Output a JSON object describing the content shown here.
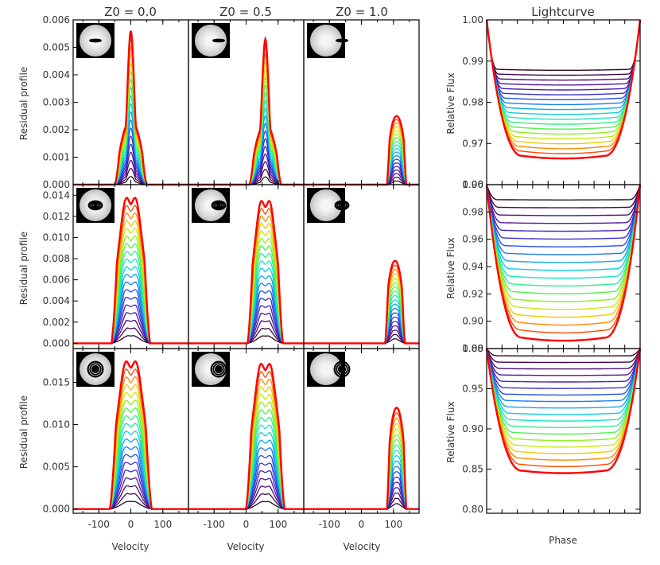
{
  "figure": {
    "column_titles": [
      "Z0 = 0.0",
      "Z0 = 0.5",
      "Z0 = 1.0"
    ],
    "lightcurve_title": "Lightcurve",
    "profile_ylabel": "Residual profile",
    "profile_xlabel": "Velocity",
    "lightcurve_ylabel": "Relative Flux",
    "lightcurve_xlabel": "Phase",
    "rainbow_colors": [
      "#2a0a1e",
      "#3b0a4a",
      "#4b1070",
      "#50199a",
      "#4824b8",
      "#3a33d4",
      "#2a4fe8",
      "#1f7cf0",
      "#10a8ec",
      "#0fcfe0",
      "#15e8c0",
      "#2ef08a",
      "#55f050",
      "#8ef020",
      "#c8e810",
      "#f2c808",
      "#ff8a00",
      "#ff4a00",
      "#ff0000"
    ]
  },
  "chart_data": [
    {
      "type": "line",
      "panel": "row1-Z0.0",
      "x_range": [
        -180,
        180
      ],
      "ylim": [
        0,
        0.006
      ],
      "xticks": [
        -100,
        0,
        100
      ],
      "yticks": [
        0,
        0.001,
        0.002,
        0.003,
        0.004,
        0.005,
        0.006
      ],
      "ytick_labels": [
        "0.000",
        "0.001",
        "0.002",
        "0.003",
        "0.004",
        "0.005",
        "0.006"
      ],
      "center": 0,
      "halfwidth": 50,
      "peak": 0.0056,
      "shape": "spiky",
      "inset": {
        "ring_x": 0.0,
        "ring_scale": 0.26,
        "ring_flatten": 0.18
      }
    },
    {
      "type": "line",
      "panel": "row1-Z0.5",
      "x_range": [
        -180,
        180
      ],
      "ylim": [
        0,
        0.006
      ],
      "xticks": [
        -100,
        0,
        100
      ],
      "center": 60,
      "halfwidth": 50,
      "peak": 0.0053,
      "shape": "spiky",
      "inset": {
        "ring_x": 0.5,
        "ring_scale": 0.26,
        "ring_flatten": 0.18
      }
    },
    {
      "type": "line",
      "panel": "row1-Z1.0",
      "x_range": [
        -180,
        180
      ],
      "ylim": [
        0,
        0.006
      ],
      "xticks": [
        -100,
        0,
        100
      ],
      "center": 110,
      "halfwidth": 30,
      "peak": 0.0025,
      "shape": "edge",
      "inset": {
        "ring_x": 1.0,
        "ring_scale": 0.26,
        "ring_flatten": 0.18
      }
    },
    {
      "type": "line",
      "panel": "row1-lightcurve",
      "x_range": [
        0,
        1
      ],
      "ylim": [
        0.96,
        1.0
      ],
      "yticks": [
        0.96,
        0.97,
        0.98,
        0.99,
        1.0
      ],
      "ytick_labels": [
        "0.96",
        "0.97",
        "0.98",
        "0.99",
        "1.00"
      ],
      "min_depths": [
        0.988,
        0.967
      ]
    },
    {
      "type": "line",
      "panel": "row2-Z0.0",
      "x_range": [
        -180,
        180
      ],
      "ylim": [
        -0.0005,
        0.015
      ],
      "xticks": [
        -100,
        0,
        100
      ],
      "yticks": [
        0,
        0.002,
        0.004,
        0.006,
        0.008,
        0.01,
        0.012,
        0.014
      ],
      "ytick_labels": [
        "0.000",
        "0.002",
        "0.004",
        "0.006",
        "0.008",
        "0.010",
        "0.012",
        "0.014"
      ],
      "center": 0,
      "halfwidth": 60,
      "peak": 0.014,
      "shape": "round",
      "inset": {
        "ring_x": 0.0,
        "ring_scale": 0.32,
        "ring_flatten": 0.62
      }
    },
    {
      "type": "line",
      "panel": "row2-Z0.5",
      "x_range": [
        -180,
        180
      ],
      "ylim": [
        -0.0005,
        0.015
      ],
      "xticks": [
        -100,
        0,
        100
      ],
      "center": 60,
      "halfwidth": 55,
      "peak": 0.0137,
      "shape": "round",
      "inset": {
        "ring_x": 0.5,
        "ring_scale": 0.32,
        "ring_flatten": 0.62
      }
    },
    {
      "type": "line",
      "panel": "row2-Z1.0",
      "x_range": [
        -180,
        180
      ],
      "ylim": [
        -0.0005,
        0.015
      ],
      "xticks": [
        -100,
        0,
        100
      ],
      "center": 105,
      "halfwidth": 30,
      "peak": 0.0078,
      "shape": "edge",
      "inset": {
        "ring_x": 1.0,
        "ring_scale": 0.32,
        "ring_flatten": 0.62
      }
    },
    {
      "type": "line",
      "panel": "row2-lightcurve",
      "x_range": [
        0,
        1
      ],
      "ylim": [
        0.88,
        1.0
      ],
      "yticks": [
        0.88,
        0.9,
        0.92,
        0.94,
        0.96,
        0.98,
        1.0
      ],
      "ytick_labels": [
        "0.88",
        "0.90",
        "0.92",
        "0.94",
        "0.96",
        "0.98",
        "1.00"
      ],
      "min_depths": [
        0.989,
        0.888
      ]
    },
    {
      "type": "line",
      "panel": "row3-Z0.0",
      "x_range": [
        -180,
        180
      ],
      "ylim": [
        -0.0005,
        0.019
      ],
      "xticks": [
        -100,
        0,
        100
      ],
      "xtick_labels": [
        "-100",
        "0",
        "100"
      ],
      "yticks": [
        0,
        0.005,
        0.01,
        0.015
      ],
      "ytick_labels": [
        "0.000",
        "0.005",
        "0.010",
        "0.015"
      ],
      "center": 0,
      "halfwidth": 65,
      "peak": 0.0178,
      "shape": "round",
      "inset": {
        "ring_x": 0.0,
        "ring_scale": 0.36,
        "ring_flatten": 1.0
      }
    },
    {
      "type": "line",
      "panel": "row3-Z0.5",
      "x_range": [
        -180,
        180
      ],
      "ylim": [
        -0.0005,
        0.019
      ],
      "xticks": [
        -100,
        0,
        100
      ],
      "xtick_labels": [
        "-100",
        "0",
        "100"
      ],
      "center": 60,
      "halfwidth": 60,
      "peak": 0.0175,
      "shape": "round",
      "inset": {
        "ring_x": 0.5,
        "ring_scale": 0.36,
        "ring_flatten": 1.0
      }
    },
    {
      "type": "line",
      "panel": "row3-Z1.0",
      "x_range": [
        -180,
        180
      ],
      "ylim": [
        -0.0005,
        0.019
      ],
      "xticks": [
        -100,
        0,
        100
      ],
      "xtick_labels": [
        "-100",
        "0",
        "100"
      ],
      "center": 110,
      "halfwidth": 30,
      "peak": 0.012,
      "shape": "edge",
      "inset": {
        "ring_x": 1.0,
        "ring_scale": 0.36,
        "ring_flatten": 1.0
      }
    },
    {
      "type": "line",
      "panel": "row3-lightcurve",
      "x_range": [
        0,
        1
      ],
      "ylim": [
        0.795,
        1.0
      ],
      "yticks": [
        0.8,
        0.85,
        0.9,
        0.95,
        1.0
      ],
      "ytick_labels": [
        "0.80",
        "0.85",
        "0.90",
        "0.95",
        "1.00"
      ],
      "min_depths": [
        0.991,
        0.848
      ]
    }
  ]
}
